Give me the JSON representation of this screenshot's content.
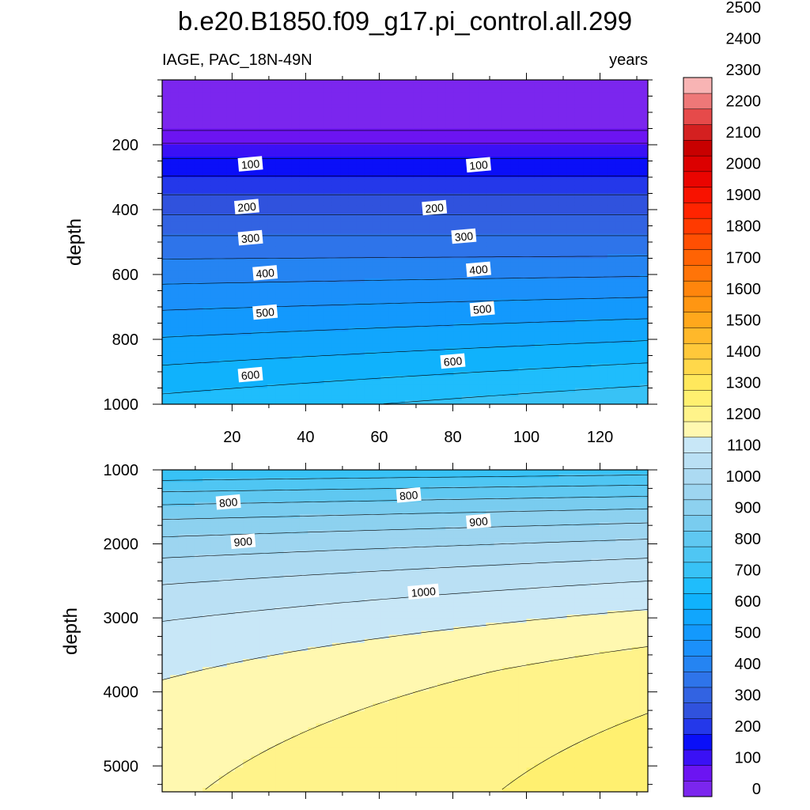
{
  "title": "b.e20.B1850.f09_g17.pi_control.all.299",
  "subtitle_left": "IAGE, PAC_18N-49N",
  "subtitle_right": "years",
  "chart_data": {
    "type": "contour",
    "variable": "IAGE",
    "region": "PAC_18N-49N",
    "units": "years",
    "x_axis": {
      "label": "",
      "range": [
        1,
        133
      ],
      "ticks": [
        20,
        40,
        60,
        80,
        100,
        120
      ]
    },
    "panels": [
      {
        "name": "upper",
        "ylabel": "depth",
        "ylim": [
          1000,
          0
        ],
        "yticks": [
          200,
          400,
          600,
          800,
          1000
        ],
        "contour_labels": [
          {
            "value": 100,
            "x": 25,
            "depth": 260
          },
          {
            "value": 100,
            "x": 87,
            "depth": 263
          },
          {
            "value": 200,
            "x": 24,
            "depth": 392
          },
          {
            "value": 200,
            "x": 75,
            "depth": 395
          },
          {
            "value": 300,
            "x": 25,
            "depth": 488
          },
          {
            "value": 300,
            "x": 83,
            "depth": 483
          },
          {
            "value": 400,
            "x": 29,
            "depth": 596
          },
          {
            "value": 400,
            "x": 87,
            "depth": 585
          },
          {
            "value": 500,
            "x": 29,
            "depth": 717
          },
          {
            "value": 500,
            "x": 88,
            "depth": 707
          },
          {
            "value": 600,
            "x": 25,
            "depth": 910
          },
          {
            "value": 600,
            "x": 80,
            "depth": 868
          }
        ]
      },
      {
        "name": "lower",
        "ylabel": "depth",
        "ylim": [
          5350,
          1000
        ],
        "yticks": [
          1000,
          2000,
          3000,
          4000,
          5000
        ],
        "contour_labels": [
          {
            "value": 800,
            "x": 19,
            "depth": 1440
          },
          {
            "value": 800,
            "x": 68,
            "depth": 1345
          },
          {
            "value": 900,
            "x": 23,
            "depth": 1970
          },
          {
            "value": 900,
            "x": 87,
            "depth": 1700
          },
          {
            "value": 1000,
            "x": 72,
            "depth": 2650
          }
        ]
      }
    ],
    "colorbar": {
      "labels": [
        0,
        100,
        200,
        300,
        400,
        500,
        600,
        700,
        800,
        900,
        1000,
        1100,
        1200,
        1300,
        1400,
        1500,
        1600,
        1700,
        1800,
        1900,
        2000,
        2100,
        2200,
        2300,
        2400,
        2500
      ],
      "colors": [
        "#7b26ee",
        "#6c14f2",
        "#3a11f5",
        "#0a0ff8",
        "#2438ea",
        "#3052dd",
        "#3263e2",
        "#2e74ea",
        "#2584f2",
        "#1b90fa",
        "#1399fd",
        "#11a6fd",
        "#10b2fc",
        "#1fbdfc",
        "#38c2f6",
        "#4fc6f3",
        "#5fc8f1",
        "#79ccef",
        "#8dd1ef",
        "#9dd5f0",
        "#acdaf2",
        "#bae0f4",
        "#c8e7f7",
        "#fff8b0",
        "#fff38a",
        "#fff070",
        "#ffe85c",
        "#ffd84a",
        "#ffc83a",
        "#ffb82a",
        "#ffa81c",
        "#ff9612",
        "#ff850c",
        "#ff7408",
        "#ff6304",
        "#ff4f02",
        "#ff3a00",
        "#ff2400",
        "#f81200",
        "#ea0400",
        "#dc0000",
        "#c80000",
        "#d42020",
        "#e64a4a",
        "#ee7878",
        "#f8b4b4"
      ]
    }
  }
}
